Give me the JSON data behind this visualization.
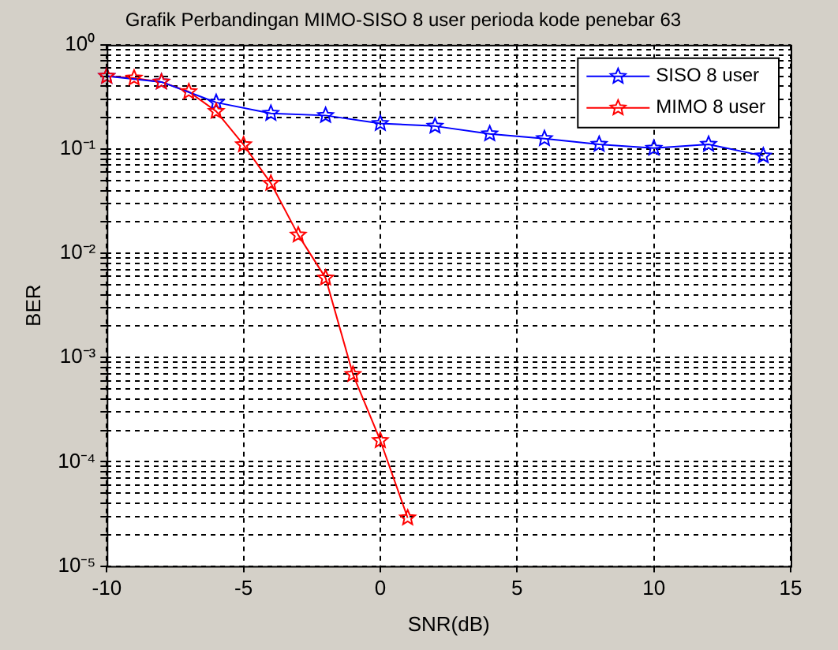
{
  "chart_data": {
    "type": "line",
    "title": "Grafik Perbandingan MIMO-SISO 8 user perioda kode penebar 63",
    "xlabel": "SNR(dB)",
    "ylabel": "BER",
    "series": [
      {
        "name": "SISO 8 user",
        "color": "#0000ff",
        "x": [
          -10,
          -8,
          -6,
          -4,
          -2,
          0,
          2,
          4,
          6,
          8,
          10,
          12,
          14
        ],
        "values": [
          0.5,
          0.44,
          0.28,
          0.22,
          0.21,
          0.176,
          0.166,
          0.14,
          0.126,
          0.111,
          0.102,
          0.111,
          0.086
        ]
      },
      {
        "name": "MIMO 8 user",
        "color": "#ff0000",
        "x": [
          -10,
          -9,
          -8,
          -7,
          -6,
          -5,
          -4,
          -3,
          -2,
          -1,
          0,
          1
        ],
        "values": [
          0.5,
          0.48,
          0.44,
          0.355,
          0.23,
          0.11,
          0.047,
          0.015,
          0.0058,
          0.00069,
          0.00016,
          2.9e-05
        ]
      }
    ],
    "xlim": [
      -10,
      15
    ],
    "xticks": [
      -10,
      -5,
      0,
      5,
      10,
      15
    ],
    "ylim": [
      1e-05,
      1
    ],
    "yticks": [
      {
        "value": 1e-05,
        "label": "10⁻⁵"
      },
      {
        "value": 2e-05,
        "label": null
      },
      {
        "value": 3e-05,
        "label": null
      },
      {
        "value": 4e-05,
        "label": null
      },
      {
        "value": 5e-05,
        "label": null
      },
      {
        "value": 6e-05,
        "label": null
      },
      {
        "value": 7e-05,
        "label": null
      },
      {
        "value": 8e-05,
        "label": null
      },
      {
        "value": 9e-05,
        "label": null
      },
      {
        "value": 0.0001,
        "label": "10⁻⁴"
      },
      {
        "value": 0.0002,
        "label": null
      },
      {
        "value": 0.0003,
        "label": null
      },
      {
        "value": 0.0004,
        "label": null
      },
      {
        "value": 0.0005,
        "label": null
      },
      {
        "value": 0.0006,
        "label": null
      },
      {
        "value": 0.0007,
        "label": null
      },
      {
        "value": 0.0008,
        "label": null
      },
      {
        "value": 0.0009,
        "label": null
      },
      {
        "value": 0.001,
        "label": "10⁻³"
      },
      {
        "value": 0.002,
        "label": null
      },
      {
        "value": 0.003,
        "label": null
      },
      {
        "value": 0.004,
        "label": null
      },
      {
        "value": 0.005,
        "label": null
      },
      {
        "value": 0.006,
        "label": null
      },
      {
        "value": 0.007,
        "label": null
      },
      {
        "value": 0.008,
        "label": null
      },
      {
        "value": 0.009,
        "label": null
      },
      {
        "value": 0.01,
        "label": "10⁻²"
      },
      {
        "value": 0.02,
        "label": null
      },
      {
        "value": 0.03,
        "label": null
      },
      {
        "value": 0.04,
        "label": null
      },
      {
        "value": 0.05,
        "label": null
      },
      {
        "value": 0.06,
        "label": null
      },
      {
        "value": 0.07,
        "label": null
      },
      {
        "value": 0.08,
        "label": null
      },
      {
        "value": 0.09,
        "label": null
      },
      {
        "value": 0.1,
        "label": "10⁻¹"
      },
      {
        "value": 0.2,
        "label": null
      },
      {
        "value": 0.3,
        "label": null
      },
      {
        "value": 0.4,
        "label": null
      },
      {
        "value": 0.5,
        "label": null
      },
      {
        "value": 0.6,
        "label": null
      },
      {
        "value": 0.7,
        "label": null
      },
      {
        "value": 0.8,
        "label": null
      },
      {
        "value": 0.9,
        "label": null
      },
      {
        "value": 1,
        "label": "10⁰"
      }
    ],
    "log": "y",
    "grid": true,
    "legend": "top right",
    "marker": "star",
    "line_style": "solid"
  }
}
